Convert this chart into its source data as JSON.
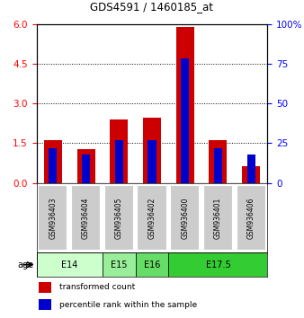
{
  "title": "GDS4591 / 1460185_at",
  "samples": [
    "GSM936403",
    "GSM936404",
    "GSM936405",
    "GSM936402",
    "GSM936400",
    "GSM936401",
    "GSM936406"
  ],
  "transformed_count": [
    1.62,
    1.27,
    2.38,
    2.45,
    5.88,
    1.62,
    0.62
  ],
  "percentile_rank_pct": [
    22,
    18,
    27,
    27,
    78,
    22,
    18
  ],
  "bar_color_red": "#cc0000",
  "bar_color_blue": "#0000cc",
  "age_groups": [
    {
      "label": "E14",
      "start": 0,
      "end": 2
    },
    {
      "label": "E15",
      "start": 2,
      "end": 3
    },
    {
      "label": "E16",
      "start": 3,
      "end": 4
    },
    {
      "label": "E17.5",
      "start": 4,
      "end": 7
    }
  ],
  "age_colors": [
    "#ccffcc",
    "#99ee99",
    "#66dd66",
    "#33cc33"
  ],
  "ylim_left": [
    0,
    6
  ],
  "ylim_right": [
    0,
    100
  ],
  "yticks_left": [
    0,
    1.5,
    3,
    4.5,
    6
  ],
  "yticks_right": [
    0,
    25,
    50,
    75,
    100
  ],
  "background_color": "#ffffff",
  "sample_box_color": "#cccccc"
}
